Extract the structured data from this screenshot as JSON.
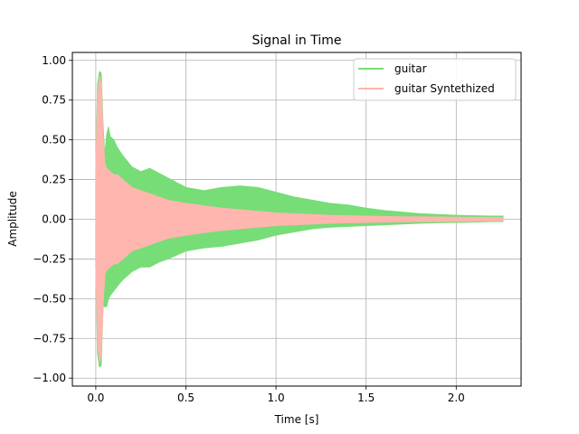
{
  "chart_data": {
    "type": "area",
    "title": "Signal in Time",
    "xlabel": "Time [s]",
    "ylabel": "Amplitude",
    "xlim": [
      -0.13,
      2.36
    ],
    "ylim": [
      -1.05,
      1.05
    ],
    "xticks": [
      0.0,
      0.5,
      1.0,
      1.5,
      2.0
    ],
    "xtick_labels": [
      "0.0",
      "0.5",
      "1.0",
      "1.5",
      "2.0"
    ],
    "yticks": [
      -1.0,
      -0.75,
      -0.5,
      -0.25,
      0.0,
      0.25,
      0.5,
      0.75,
      1.0
    ],
    "ytick_labels": [
      "−1.00",
      "−0.75",
      "−0.50",
      "−0.25",
      "0.00",
      "0.25",
      "0.50",
      "0.75",
      "1.00"
    ],
    "grid": true,
    "legend_position": "top-right",
    "series": [
      {
        "name": "guitar",
        "color": "#77dd77",
        "x": [
          0.0,
          0.01,
          0.02,
          0.03,
          0.04,
          0.05,
          0.06,
          0.07,
          0.08,
          0.1,
          0.12,
          0.15,
          0.2,
          0.25,
          0.3,
          0.35,
          0.4,
          0.5,
          0.6,
          0.7,
          0.8,
          0.9,
          1.0,
          1.1,
          1.2,
          1.3,
          1.4,
          1.5,
          1.6,
          1.7,
          1.8,
          1.9,
          2.0,
          2.1,
          2.2,
          2.26
        ],
        "upper": [
          0.3,
          0.85,
          0.93,
          0.92,
          0.6,
          0.4,
          0.53,
          0.58,
          0.52,
          0.5,
          0.45,
          0.4,
          0.33,
          0.3,
          0.32,
          0.29,
          0.26,
          0.2,
          0.18,
          0.2,
          0.21,
          0.2,
          0.17,
          0.14,
          0.12,
          0.1,
          0.09,
          0.07,
          0.055,
          0.045,
          0.035,
          0.03,
          0.025,
          0.022,
          0.02,
          0.02
        ],
        "lower": [
          -0.3,
          -0.85,
          -0.93,
          -0.92,
          -0.55,
          -0.55,
          -0.55,
          -0.5,
          -0.48,
          -0.45,
          -0.42,
          -0.38,
          -0.33,
          -0.3,
          -0.3,
          -0.27,
          -0.25,
          -0.2,
          -0.18,
          -0.17,
          -0.15,
          -0.13,
          -0.1,
          -0.08,
          -0.06,
          -0.05,
          -0.045,
          -0.04,
          -0.035,
          -0.03,
          -0.025,
          -0.022,
          -0.02,
          -0.018,
          -0.015,
          -0.015
        ]
      },
      {
        "name": "guitar Syntethized",
        "color": "#ffb6ae",
        "x": [
          0.0,
          0.01,
          0.02,
          0.03,
          0.04,
          0.05,
          0.06,
          0.08,
          0.1,
          0.12,
          0.15,
          0.2,
          0.25,
          0.3,
          0.35,
          0.4,
          0.5,
          0.6,
          0.7,
          0.8,
          0.9,
          1.0,
          1.1,
          1.2,
          1.3,
          1.4,
          1.5,
          1.6,
          1.7,
          1.8,
          1.9,
          2.0,
          2.1,
          2.2,
          2.26
        ],
        "upper": [
          0.3,
          0.75,
          0.9,
          0.85,
          0.55,
          0.35,
          0.32,
          0.3,
          0.28,
          0.28,
          0.25,
          0.2,
          0.18,
          0.16,
          0.14,
          0.12,
          0.1,
          0.085,
          0.07,
          0.06,
          0.05,
          0.04,
          0.035,
          0.03,
          0.025,
          0.022,
          0.02,
          0.018,
          0.016,
          0.015,
          0.014,
          0.013,
          0.012,
          0.011,
          0.01
        ],
        "lower": [
          -0.3,
          -0.75,
          -0.9,
          -0.85,
          -0.55,
          -0.35,
          -0.32,
          -0.3,
          -0.28,
          -0.28,
          -0.25,
          -0.2,
          -0.18,
          -0.16,
          -0.14,
          -0.12,
          -0.1,
          -0.085,
          -0.07,
          -0.06,
          -0.05,
          -0.04,
          -0.035,
          -0.03,
          -0.025,
          -0.022,
          -0.02,
          -0.018,
          -0.016,
          -0.015,
          -0.014,
          -0.013,
          -0.012,
          -0.011,
          -0.01
        ]
      }
    ]
  }
}
